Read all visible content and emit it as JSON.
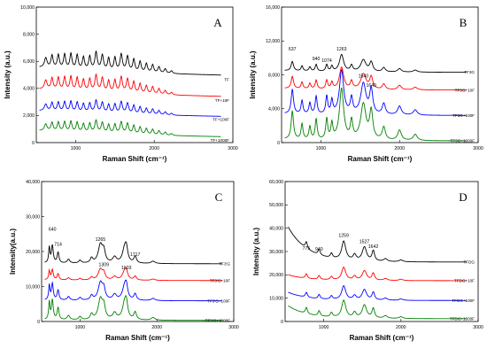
{
  "chart_data": [
    {
      "type": "line",
      "panel_letter": "A",
      "xlabel": "Raman Shift (cm⁻¹)",
      "ylabel": "Intensity (a.u.)",
      "xlim": [
        500,
        3000
      ],
      "ylim": [
        0,
        10000
      ],
      "xticks": [
        "1000",
        "2000",
        "3000"
      ],
      "yticks": [
        "0",
        "2,000",
        "4,000",
        "6,000",
        "8,000",
        "10,000"
      ],
      "ytick_values": [
        0,
        2000,
        4000,
        6000,
        8000,
        10000
      ],
      "peak_labels": [],
      "series": [
        {
          "name": "TF",
          "color": "#000000",
          "baseline": 4650,
          "amp": 1300,
          "wave": 900,
          "decay": 2300
        },
        {
          "name": "TF+10F",
          "color": "#ff0000",
          "baseline": 3100,
          "amp": 1200,
          "wave": 850,
          "decay": 2300
        },
        {
          "name": "TF+100F",
          "color": "#0000ff",
          "baseline": 1700,
          "amp": 900,
          "wave": 650,
          "decay": 2300
        },
        {
          "name": "TF+1000F",
          "color": "#008000",
          "baseline": 180,
          "amp": 900,
          "wave": 700,
          "decay": 2300
        }
      ]
    },
    {
      "type": "line",
      "panel_letter": "B",
      "xlabel": "Raman Shift (cm⁻¹)",
      "ylabel": "Intensity (a.u.)",
      "xlim": [
        500,
        3000
      ],
      "ylim": [
        0,
        16000
      ],
      "xticks": [
        "1000",
        "2000",
        "3000"
      ],
      "yticks": [
        "0",
        "4,000",
        "8,000",
        "12,000",
        "16,000"
      ],
      "ytick_values": [
        0,
        4000,
        8000,
        12000,
        16000
      ],
      "peak_labels": [
        {
          "text": "637",
          "x": 637,
          "y": 10900
        },
        {
          "text": "940",
          "x": 940,
          "y": 9700
        },
        {
          "text": "1074",
          "x": 1074,
          "y": 9500
        },
        {
          "text": "1263",
          "x": 1263,
          "y": 10900
        },
        {
          "text": "1540",
          "x": 1540,
          "y": 7700
        },
        {
          "text": "1640",
          "x": 1640,
          "y": 6600
        }
      ],
      "series": [
        {
          "name": "TF3G",
          "color": "#000000",
          "baseline": 8300,
          "amp": 2000,
          "wave": 200,
          "decay": 500
        },
        {
          "name": "TF3G+10F",
          "color": "#ff0000",
          "baseline": 6200,
          "amp": 2600,
          "wave": 200,
          "decay": 500
        },
        {
          "name": "TF3G+100F",
          "color": "#0000ff",
          "baseline": 3200,
          "amp": 5200,
          "wave": 200,
          "decay": 500
        },
        {
          "name": "TF3G+1000F",
          "color": "#008000",
          "baseline": 200,
          "amp": 6000,
          "wave": 200,
          "decay": 500
        }
      ]
    },
    {
      "type": "line",
      "panel_letter": "C",
      "xlabel": "Raman Shift (cm⁻¹)",
      "ylabel": "Intensity(a.u.)",
      "xlim": [
        500,
        3000
      ],
      "ylim": [
        0,
        40000
      ],
      "xticks": [
        "1000",
        "2000",
        "3000"
      ],
      "yticks": [
        "0",
        "10,000",
        "20,000",
        "30,000",
        "40,000"
      ],
      "ytick_values": [
        0,
        10000,
        20000,
        30000,
        40000
      ],
      "peak_labels": [
        {
          "text": "640",
          "x": 640,
          "y": 26000
        },
        {
          "text": "714",
          "x": 714,
          "y": 21700
        },
        {
          "text": "1265",
          "x": 1265,
          "y": 23000
        },
        {
          "text": "1717",
          "x": 1717,
          "y": 18700
        },
        {
          "text": "1309",
          "x": 1309,
          "y": 15800
        },
        {
          "text": "1603",
          "x": 1603,
          "y": 14900
        }
      ],
      "series": [
        {
          "name": "TF3'G",
          "color": "#000000",
          "baseline": 16500,
          "amp": 5500,
          "wave": 200,
          "decay": 500
        },
        {
          "name": "TF3'G+10F",
          "color": "#ff0000",
          "baseline": 11700,
          "amp": 3200,
          "wave": 200,
          "decay": 500
        },
        {
          "name": "TF3'G+100F",
          "color": "#0000ff",
          "baseline": 5900,
          "amp": 5200,
          "wave": 200,
          "decay": 500
        },
        {
          "name": "TF3'G+1000F",
          "color": "#008000",
          "baseline": 300,
          "amp": 6200,
          "wave": 200,
          "decay": 500
        }
      ]
    },
    {
      "type": "line",
      "panel_letter": "D",
      "xlabel": "Raman Shift (cm⁻¹)",
      "ylabel": "Intensity (a.u.)",
      "xlim": [
        500,
        3000
      ],
      "ylim": [
        0,
        60000
      ],
      "xticks": [
        "1000",
        "2000",
        "3000"
      ],
      "yticks": [
        "0",
        "10,000",
        "20,000",
        "30,000",
        "40,000",
        "50,000",
        "60,000"
      ],
      "ytick_values": [
        0,
        10000,
        20000,
        30000,
        40000,
        50000,
        60000
      ],
      "peak_labels": [
        {
          "text": "775",
          "x": 775,
          "y": 30700
        },
        {
          "text": "940",
          "x": 940,
          "y": 30300
        },
        {
          "text": "1259",
          "x": 1259,
          "y": 36300
        },
        {
          "text": "1527",
          "x": 1527,
          "y": 33700
        },
        {
          "text": "1642",
          "x": 1642,
          "y": 31600
        }
      ],
      "series": [
        {
          "name": "TFDG",
          "color": "#000000",
          "baseline": 25500,
          "amp": 8000,
          "wave": 15000,
          "decay": 250
        },
        {
          "name": "TFDG+10F",
          "color": "#ff0000",
          "baseline": 17500,
          "amp": 5500,
          "wave": 2500,
          "decay": 250
        },
        {
          "name": "TFDG+100F",
          "color": "#0000ff",
          "baseline": 9000,
          "amp": 6000,
          "wave": 3500,
          "decay": 250
        },
        {
          "name": "TFDG+1000F",
          "color": "#008000",
          "baseline": 1200,
          "amp": 7500,
          "wave": 5500,
          "decay": 250
        }
      ]
    }
  ]
}
